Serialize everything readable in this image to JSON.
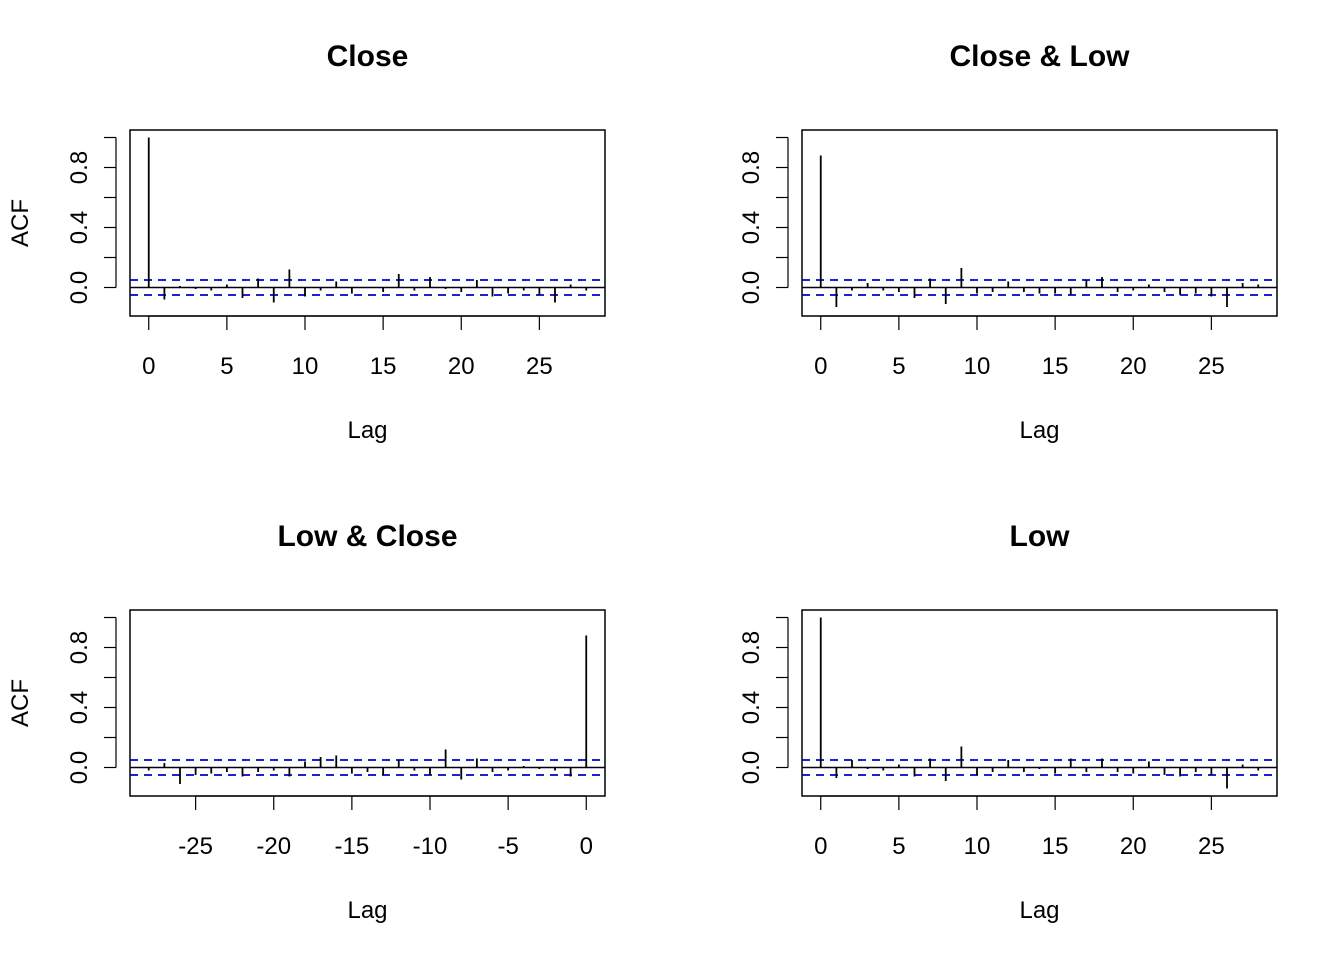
{
  "chart_data": [
    {
      "type": "bar",
      "title": "Close",
      "xlabel": "Lag",
      "ylabel": "ACF",
      "xlim": [
        -1.2,
        29.2
      ],
      "ylim": [
        -0.19,
        1.05
      ],
      "x_ticks": [
        0,
        5,
        10,
        15,
        20,
        25
      ],
      "y_ticks": [
        0.0,
        0.4,
        0.8
      ],
      "y_minor_ticks": [
        0.2,
        0.6,
        1.0
      ],
      "ci": 0.05,
      "lags": [
        0,
        1,
        2,
        3,
        4,
        5,
        6,
        7,
        8,
        9,
        10,
        11,
        12,
        13,
        14,
        15,
        16,
        17,
        18,
        19,
        20,
        21,
        22,
        23,
        24,
        25,
        26,
        27,
        28
      ],
      "values": [
        1.0,
        -0.08,
        0.01,
        -0.01,
        -0.02,
        0.02,
        -0.07,
        0.06,
        -0.1,
        0.12,
        -0.06,
        -0.02,
        0.04,
        -0.04,
        0.0,
        -0.03,
        0.09,
        -0.02,
        0.07,
        -0.01,
        -0.03,
        0.05,
        -0.06,
        -0.04,
        -0.02,
        -0.05,
        -0.1,
        0.02,
        -0.02
      ]
    },
    {
      "type": "bar",
      "title": "Close & Low",
      "xlabel": "Lag",
      "ylabel": "",
      "xlim": [
        -1.2,
        29.2
      ],
      "ylim": [
        -0.19,
        1.05
      ],
      "x_ticks": [
        0,
        5,
        10,
        15,
        20,
        25
      ],
      "y_ticks": [
        0.0,
        0.4,
        0.8
      ],
      "y_minor_ticks": [
        0.2,
        0.6,
        1.0
      ],
      "ci": 0.05,
      "lags": [
        0,
        1,
        2,
        3,
        4,
        5,
        6,
        7,
        8,
        9,
        10,
        11,
        12,
        13,
        14,
        15,
        16,
        17,
        18,
        19,
        20,
        21,
        22,
        23,
        24,
        25,
        26,
        27,
        28
      ],
      "values": [
        0.88,
        -0.13,
        -0.02,
        0.03,
        -0.02,
        -0.03,
        -0.07,
        0.06,
        -0.11,
        0.13,
        -0.04,
        -0.03,
        0.04,
        -0.03,
        -0.04,
        -0.04,
        -0.05,
        0.05,
        0.07,
        -0.03,
        -0.02,
        0.02,
        -0.03,
        -0.05,
        -0.04,
        -0.06,
        -0.13,
        0.03,
        0.02
      ]
    },
    {
      "type": "bar",
      "title": "Low & Close",
      "xlabel": "Lag",
      "ylabel": "ACF",
      "xlim": [
        -29.2,
        1.2
      ],
      "ylim": [
        -0.19,
        1.05
      ],
      "x_ticks": [
        -25,
        -20,
        -15,
        -10,
        -5,
        0
      ],
      "y_ticks": [
        0.0,
        0.4,
        0.8
      ],
      "y_minor_ticks": [
        0.2,
        0.6,
        1.0
      ],
      "ci": 0.05,
      "lags": [
        -28,
        -27,
        -26,
        -25,
        -24,
        -23,
        -22,
        -21,
        -20,
        -19,
        -18,
        -17,
        -16,
        -15,
        -14,
        -13,
        -12,
        -11,
        -10,
        -9,
        -8,
        -7,
        -6,
        -5,
        -4,
        -3,
        -2,
        -1,
        0
      ],
      "values": [
        -0.02,
        0.03,
        -0.11,
        -0.05,
        -0.04,
        -0.03,
        -0.06,
        -0.03,
        -0.02,
        -0.06,
        0.04,
        0.07,
        0.08,
        -0.04,
        -0.03,
        -0.05,
        0.05,
        -0.02,
        -0.05,
        0.12,
        -0.08,
        0.06,
        -0.03,
        -0.02,
        0.01,
        -0.01,
        -0.02,
        -0.06,
        0.88
      ]
    },
    {
      "type": "bar",
      "title": "Low",
      "xlabel": "Lag",
      "ylabel": "",
      "xlim": [
        -1.2,
        29.2
      ],
      "ylim": [
        -0.19,
        1.05
      ],
      "x_ticks": [
        0,
        5,
        10,
        15,
        20,
        25
      ],
      "y_ticks": [
        0.0,
        0.4,
        0.8
      ],
      "y_minor_ticks": [
        0.2,
        0.6,
        1.0
      ],
      "ci": 0.05,
      "lags": [
        0,
        1,
        2,
        3,
        4,
        5,
        6,
        7,
        8,
        9,
        10,
        11,
        12,
        13,
        14,
        15,
        16,
        17,
        18,
        19,
        20,
        21,
        22,
        23,
        24,
        25,
        26,
        27,
        28
      ],
      "values": [
        1.0,
        -0.07,
        0.05,
        -0.01,
        -0.02,
        0.02,
        -0.06,
        0.06,
        -0.09,
        0.14,
        -0.05,
        -0.03,
        0.05,
        -0.03,
        -0.01,
        -0.04,
        0.06,
        -0.03,
        0.06,
        -0.03,
        -0.04,
        0.04,
        -0.05,
        -0.06,
        -0.03,
        -0.05,
        -0.14,
        0.02,
        -0.02
      ]
    }
  ]
}
